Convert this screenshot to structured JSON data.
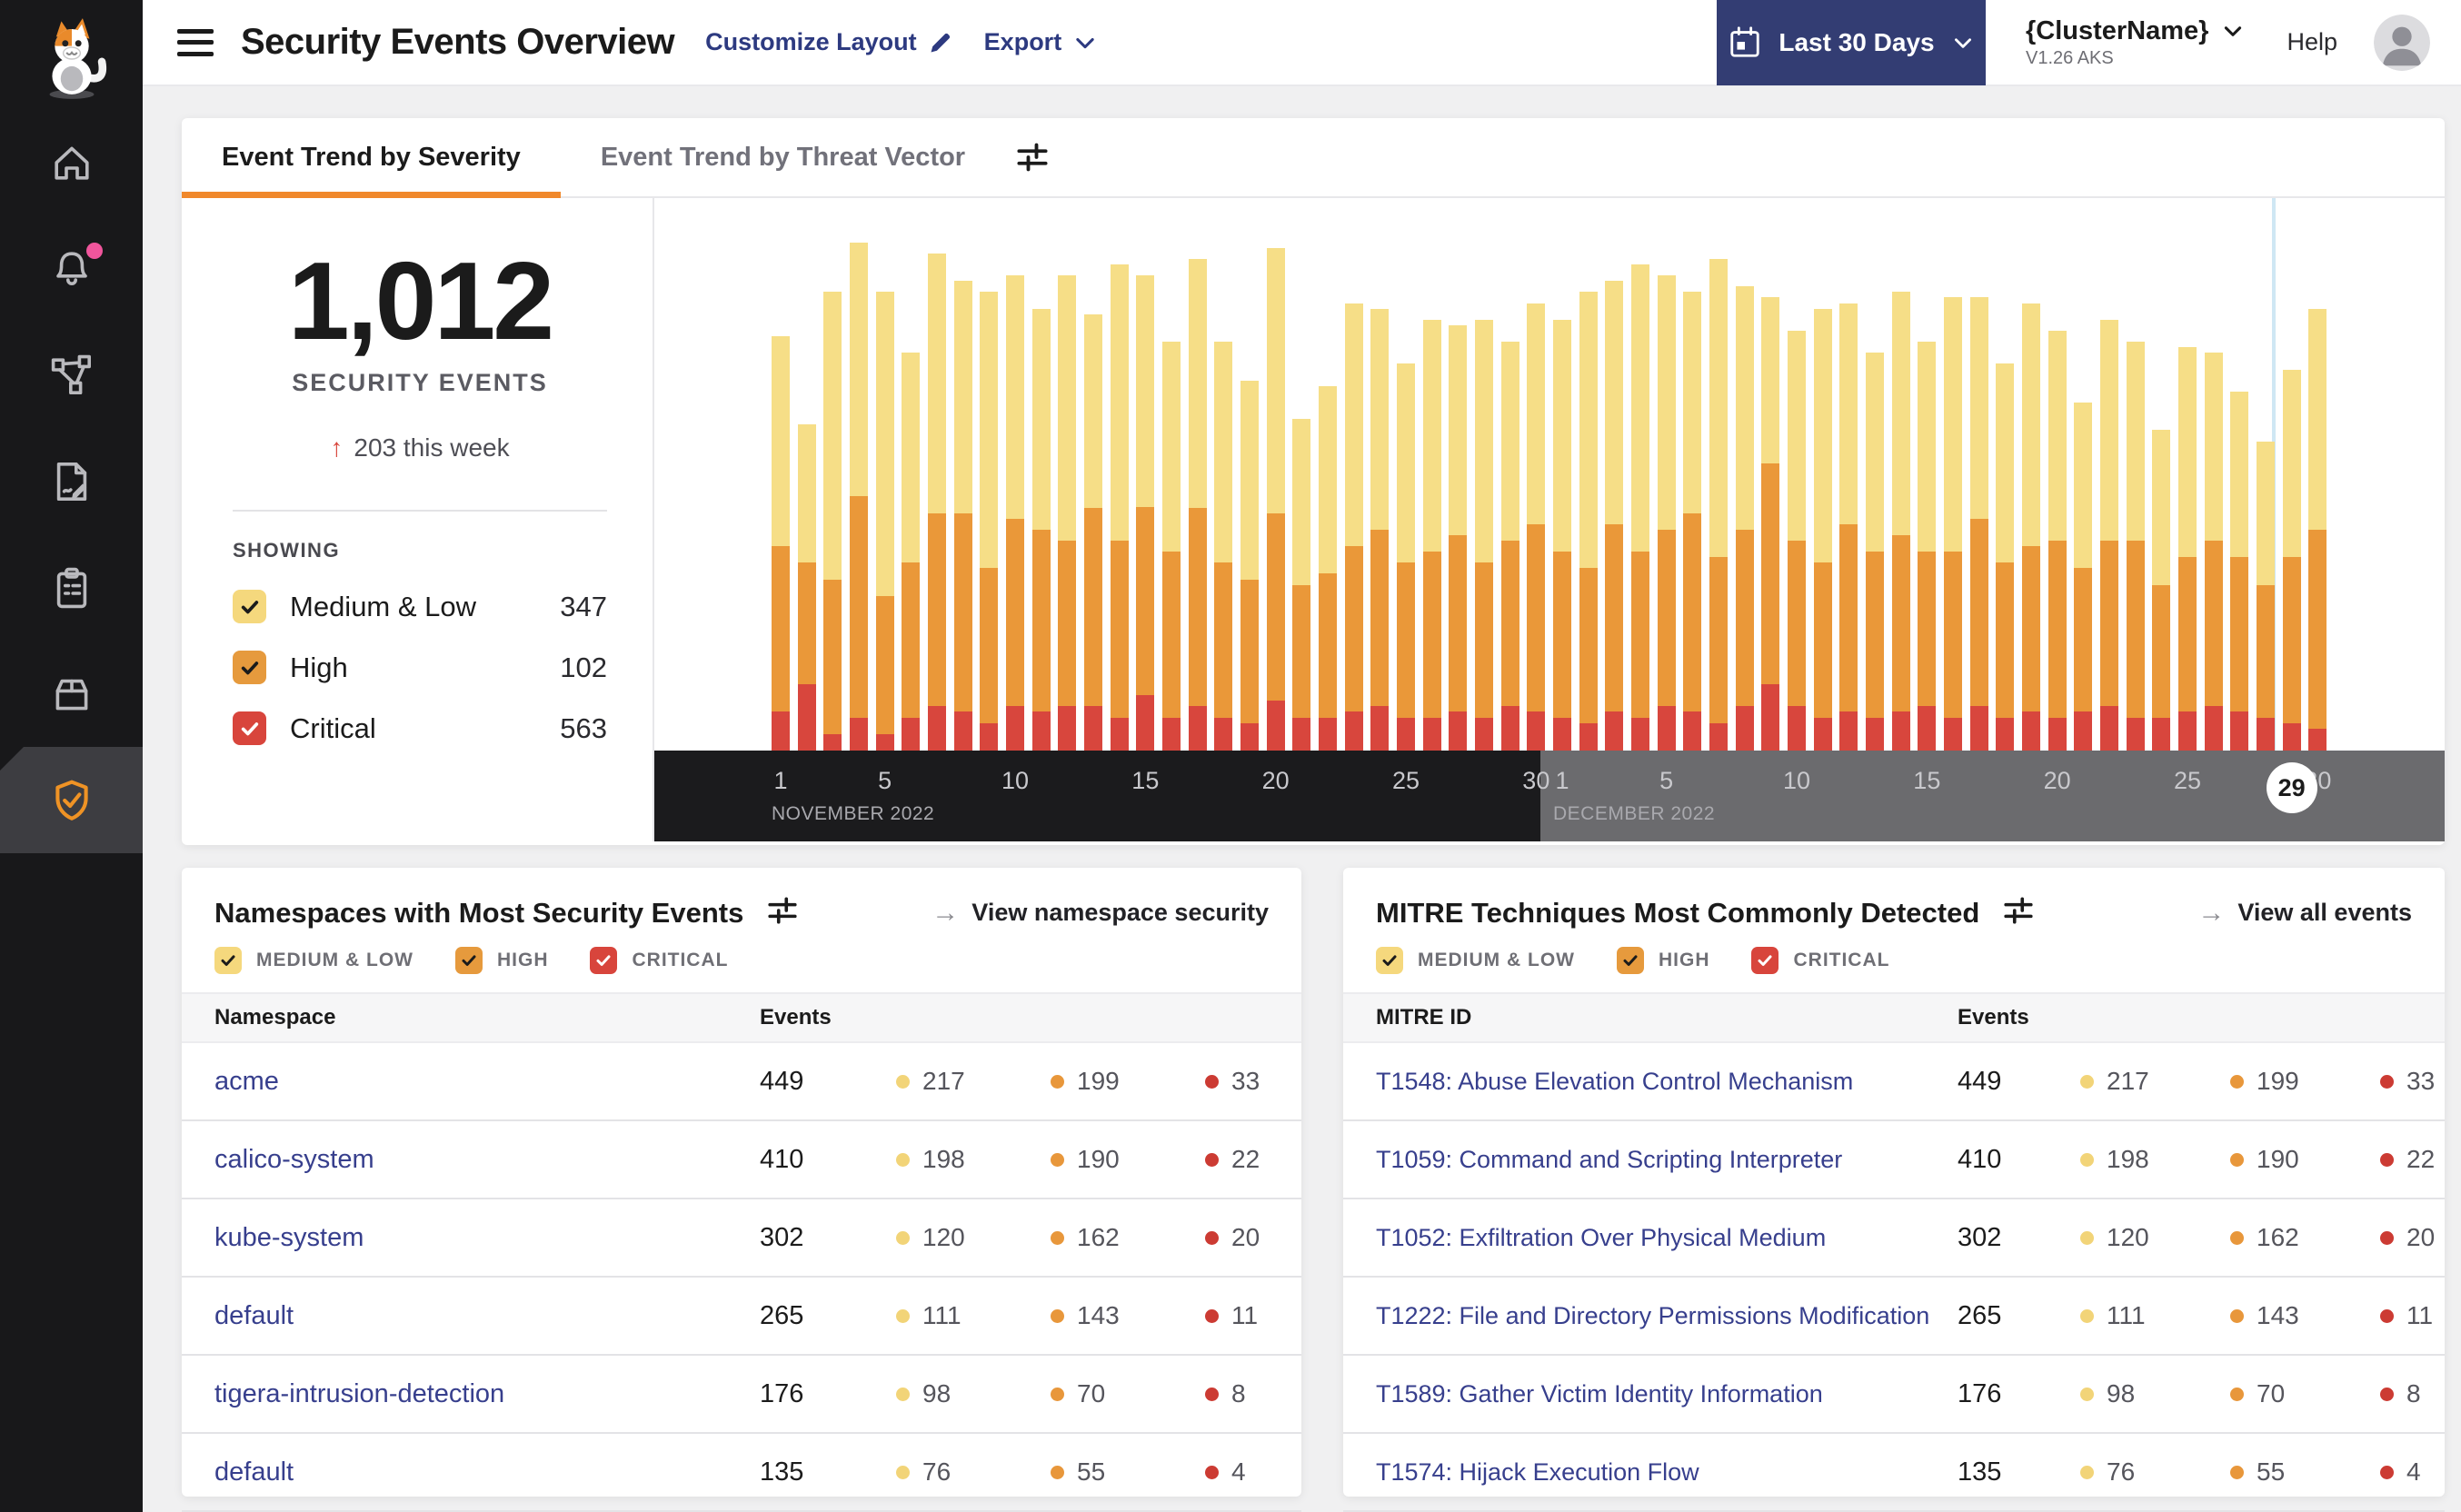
{
  "header": {
    "title": "Security Events Overview",
    "customize_layout": "Customize Layout",
    "export_label": "Export",
    "date_range": "Last 30 Days",
    "cluster_name": "{ClusterName}",
    "cluster_version": "V1.26 AKS",
    "help": "Help"
  },
  "sidebar": {
    "items": [
      {
        "icon": "home-icon"
      },
      {
        "icon": "bell-icon",
        "badge": true
      },
      {
        "icon": "network-graph-icon"
      },
      {
        "icon": "file-edit-icon"
      },
      {
        "icon": "clipboard-icon"
      },
      {
        "icon": "box-icon"
      },
      {
        "icon": "shield-check-icon",
        "active": true
      }
    ]
  },
  "tabs": [
    {
      "label": "Event Trend by Severity",
      "active": true
    },
    {
      "label": "Event Trend by Threat Vector",
      "active": false
    }
  ],
  "summary": {
    "total": "1,012",
    "total_label": "SECURITY EVENTS",
    "delta_arrow": "↑",
    "delta": "203 this week",
    "showing_label": "SHOWING",
    "filters": [
      {
        "label": "Medium & Low",
        "count": "347",
        "color": "#f5d87d",
        "checked": true
      },
      {
        "label": "High",
        "count": "102",
        "color": "#e69a3d",
        "checked": true
      },
      {
        "label": "Critical",
        "count": "563",
        "color": "#d8453c",
        "checked": true
      }
    ]
  },
  "chart_data": {
    "type": "bar",
    "stacked": true,
    "title": "Event Trend by Severity",
    "series_names": [
      "Medium & Low",
      "High",
      "Critical"
    ],
    "colors": {
      "medium_low": "#f6de87",
      "high": "#ea9839",
      "critical": "#d8463d"
    },
    "legend_position": "left-panel-checkboxes",
    "grid": false,
    "value_unit": "estimated percent of plot height (y axis unlabeled)",
    "months": [
      {
        "label": "NOVEMBER 2022",
        "ticks": [
          1,
          5,
          10,
          15,
          20,
          25,
          30
        ],
        "start_index": 0
      },
      {
        "label": "DECEMBER 2022",
        "ticks": [
          1,
          5,
          10,
          15,
          20,
          25
        ],
        "start_index": 30
      }
    ],
    "current_day_marker": {
      "label": "29",
      "index": 58
    },
    "hidden_tick_behind_marker": {
      "label": "30",
      "day": 30
    },
    "bars": [
      {
        "date": "Nov 1",
        "values": [
          38,
          30,
          7
        ]
      },
      {
        "date": "Nov 2",
        "values": [
          25,
          22,
          12
        ]
      },
      {
        "date": "Nov 3",
        "values": [
          52,
          28,
          3
        ]
      },
      {
        "date": "Nov 4",
        "values": [
          46,
          40,
          6
        ]
      },
      {
        "date": "Nov 5",
        "values": [
          55,
          25,
          3
        ]
      },
      {
        "date": "Nov 6",
        "values": [
          38,
          28,
          6
        ]
      },
      {
        "date": "Nov 7",
        "values": [
          47,
          35,
          8
        ]
      },
      {
        "date": "Nov 8",
        "values": [
          42,
          36,
          7
        ]
      },
      {
        "date": "Nov 9",
        "values": [
          50,
          28,
          5
        ]
      },
      {
        "date": "Nov 10",
        "values": [
          44,
          34,
          8
        ]
      },
      {
        "date": "Nov 11",
        "values": [
          40,
          33,
          7
        ]
      },
      {
        "date": "Nov 12",
        "values": [
          48,
          30,
          8
        ]
      },
      {
        "date": "Nov 13",
        "values": [
          35,
          36,
          8
        ]
      },
      {
        "date": "Nov 14",
        "values": [
          50,
          32,
          6
        ]
      },
      {
        "date": "Nov 15",
        "values": [
          42,
          34,
          10
        ]
      },
      {
        "date": "Nov 16",
        "values": [
          38,
          30,
          6
        ]
      },
      {
        "date": "Nov 17",
        "values": [
          45,
          36,
          8
        ]
      },
      {
        "date": "Nov 18",
        "values": [
          40,
          28,
          6
        ]
      },
      {
        "date": "Nov 19",
        "values": [
          36,
          26,
          5
        ]
      },
      {
        "date": "Nov 20",
        "values": [
          48,
          34,
          9
        ]
      },
      {
        "date": "Nov 21",
        "values": [
          30,
          24,
          6
        ]
      },
      {
        "date": "Nov 22",
        "values": [
          34,
          26,
          6
        ]
      },
      {
        "date": "Nov 23",
        "values": [
          44,
          30,
          7
        ]
      },
      {
        "date": "Nov 24",
        "values": [
          40,
          32,
          8
        ]
      },
      {
        "date": "Nov 25",
        "values": [
          36,
          28,
          6
        ]
      },
      {
        "date": "Nov 26",
        "values": [
          42,
          30,
          6
        ]
      },
      {
        "date": "Nov 27",
        "values": [
          38,
          32,
          7
        ]
      },
      {
        "date": "Nov 28",
        "values": [
          44,
          28,
          6
        ]
      },
      {
        "date": "Nov 29",
        "values": [
          36,
          30,
          8
        ]
      },
      {
        "date": "Nov 30",
        "values": [
          40,
          34,
          7
        ]
      },
      {
        "date": "Dec 1",
        "values": [
          42,
          30,
          6
        ]
      },
      {
        "date": "Dec 2",
        "values": [
          50,
          28,
          5
        ]
      },
      {
        "date": "Dec 3",
        "values": [
          44,
          34,
          7
        ]
      },
      {
        "date": "Dec 4",
        "values": [
          52,
          30,
          6
        ]
      },
      {
        "date": "Dec 5",
        "values": [
          46,
          32,
          8
        ]
      },
      {
        "date": "Dec 6",
        "values": [
          40,
          36,
          7
        ]
      },
      {
        "date": "Dec 7",
        "values": [
          54,
          30,
          5
        ]
      },
      {
        "date": "Dec 8",
        "values": [
          44,
          32,
          8
        ]
      },
      {
        "date": "Dec 9",
        "values": [
          30,
          40,
          12
        ]
      },
      {
        "date": "Dec 10",
        "values": [
          38,
          30,
          8
        ]
      },
      {
        "date": "Dec 11",
        "values": [
          46,
          28,
          6
        ]
      },
      {
        "date": "Dec 12",
        "values": [
          40,
          34,
          7
        ]
      },
      {
        "date": "Dec 13",
        "values": [
          36,
          30,
          6
        ]
      },
      {
        "date": "Dec 14",
        "values": [
          44,
          32,
          7
        ]
      },
      {
        "date": "Dec 15",
        "values": [
          38,
          28,
          8
        ]
      },
      {
        "date": "Dec 16",
        "values": [
          46,
          30,
          6
        ]
      },
      {
        "date": "Dec 17",
        "values": [
          40,
          34,
          8
        ]
      },
      {
        "date": "Dec 18",
        "values": [
          36,
          28,
          6
        ]
      },
      {
        "date": "Dec 19",
        "values": [
          44,
          30,
          7
        ]
      },
      {
        "date": "Dec 20",
        "values": [
          38,
          32,
          6
        ]
      },
      {
        "date": "Dec 21",
        "values": [
          30,
          26,
          7
        ]
      },
      {
        "date": "Dec 22",
        "values": [
          40,
          30,
          8
        ]
      },
      {
        "date": "Dec 23",
        "values": [
          36,
          32,
          6
        ]
      },
      {
        "date": "Dec 24",
        "values": [
          28,
          24,
          6
        ]
      },
      {
        "date": "Dec 25",
        "values": [
          38,
          28,
          7
        ]
      },
      {
        "date": "Dec 26",
        "values": [
          34,
          30,
          8
        ]
      },
      {
        "date": "Dec 27",
        "values": [
          30,
          28,
          7
        ]
      },
      {
        "date": "Dec 28",
        "values": [
          26,
          24,
          6
        ]
      },
      {
        "date": "Dec 29",
        "values": [
          34,
          30,
          5
        ]
      },
      {
        "date": "Dec 30",
        "values": [
          40,
          36,
          4
        ]
      }
    ]
  },
  "cards": {
    "namespaces": {
      "title": "Namespaces with Most Security Events",
      "link": "View namespace security",
      "filter_labels": [
        "MEDIUM & LOW",
        "HIGH",
        "CRITICAL"
      ],
      "columns": [
        "Namespace",
        "Events"
      ],
      "rows": [
        {
          "name": "acme",
          "total": "449",
          "medium_low": "217",
          "high": "199",
          "critical": "33"
        },
        {
          "name": "calico-system",
          "total": "410",
          "medium_low": "198",
          "high": "190",
          "critical": "22"
        },
        {
          "name": "kube-system",
          "total": "302",
          "medium_low": "120",
          "high": "162",
          "critical": "20"
        },
        {
          "name": "default",
          "total": "265",
          "medium_low": "111",
          "high": "143",
          "critical": "11"
        },
        {
          "name": "tigera-intrusion-detection",
          "total": "176",
          "medium_low": "98",
          "high": "70",
          "critical": "8"
        },
        {
          "name": "default",
          "total": "135",
          "medium_low": "76",
          "high": "55",
          "critical": "4"
        }
      ]
    },
    "mitre": {
      "title": "MITRE Techniques Most Commonly Detected",
      "link": "View all events",
      "filter_labels": [
        "MEDIUM & LOW",
        "HIGH",
        "CRITICAL"
      ],
      "columns": [
        "MITRE ID",
        "Events"
      ],
      "rows": [
        {
          "name": "T1548: Abuse Elevation Control Mechanism",
          "total": "449",
          "medium_low": "217",
          "high": "199",
          "critical": "33"
        },
        {
          "name": "T1059: Command and Scripting Interpreter",
          "total": "410",
          "medium_low": "198",
          "high": "190",
          "critical": "22"
        },
        {
          "name": "T1052: Exfiltration Over Physical Medium",
          "total": "302",
          "medium_low": "120",
          "high": "162",
          "critical": "20"
        },
        {
          "name": "T1222: File and Directory Permissions Modification",
          "total": "265",
          "medium_low": "111",
          "high": "143",
          "critical": "11"
        },
        {
          "name": "T1589: Gather Victim Identity Information",
          "total": "176",
          "medium_low": "98",
          "high": "70",
          "critical": "8"
        },
        {
          "name": "T1574: Hijack Execution Flow",
          "total": "135",
          "medium_low": "76",
          "high": "55",
          "critical": "4"
        }
      ]
    }
  },
  "colors": {
    "accent_orange": "#f0882b",
    "navy": "#333d73",
    "link_navy": "#373f8d",
    "critical_red": "#d8463d",
    "high_orange": "#ea9839",
    "medium_yellow": "#f6de87",
    "notification_pink": "#f0559c"
  }
}
